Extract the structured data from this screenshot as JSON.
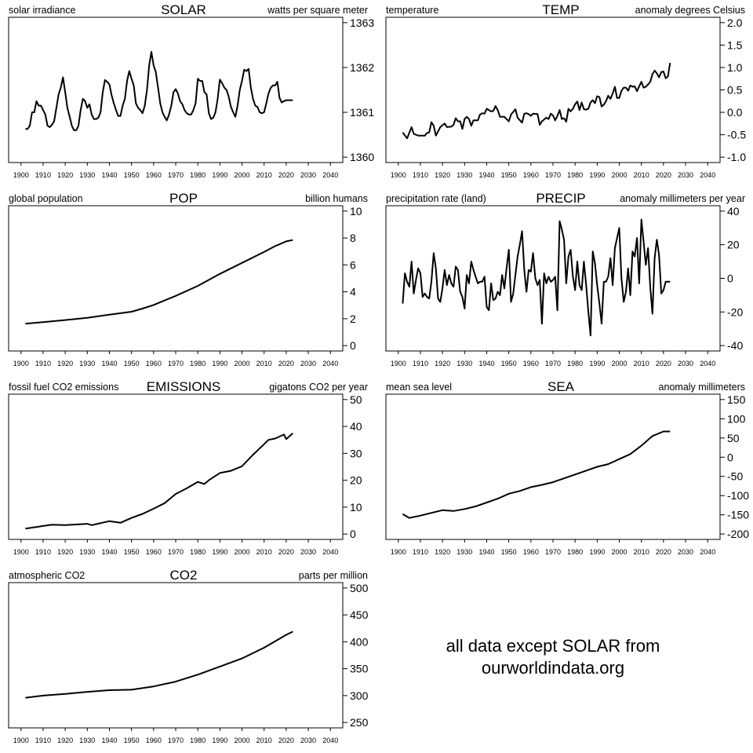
{
  "x_ticks": [
    1900,
    1910,
    1920,
    1930,
    1940,
    1950,
    1960,
    1970,
    1980,
    1990,
    2000,
    2010,
    2020,
    2030,
    2040
  ],
  "note": {
    "line1": "all data except SOLAR from",
    "line2": "ourworldindata.org"
  },
  "chart_data": [
    {
      "type": "line",
      "title": "SOLAR",
      "left_label": "solar irradiance",
      "right_label": "watts per square meter",
      "xlim": [
        1900,
        2040
      ],
      "ylim": [
        1360,
        1363
      ],
      "y_ticks": [
        "1360",
        "1361",
        "1362",
        "1363"
      ],
      "grid": false,
      "x": [
        1902,
        1903,
        1904,
        1905,
        1906,
        1907,
        1908,
        1909,
        1910,
        1911,
        1912,
        1913,
        1914,
        1915,
        1916,
        1917,
        1918,
        1919,
        1920,
        1921,
        1922,
        1923,
        1924,
        1925,
        1926,
        1927,
        1928,
        1929,
        1930,
        1931,
        1932,
        1933,
        1934,
        1935,
        1936,
        1937,
        1938,
        1939,
        1940,
        1941,
        1942,
        1943,
        1944,
        1945,
        1946,
        1947,
        1948,
        1949,
        1950,
        1951,
        1952,
        1953,
        1954,
        1955,
        1956,
        1957,
        1958,
        1959,
        1960,
        1961,
        1962,
        1963,
        1964,
        1965,
        1966,
        1967,
        1968,
        1969,
        1970,
        1971,
        1972,
        1973,
        1974,
        1975,
        1976,
        1977,
        1978,
        1979,
        1980,
        1981,
        1982,
        1983,
        1984,
        1985,
        1986,
        1987,
        1988,
        1989,
        1990,
        1991,
        1992,
        1993,
        1994,
        1995,
        1996,
        1997,
        1998,
        1999,
        2000,
        2001,
        2002,
        2003,
        2004,
        2005,
        2006,
        2007,
        2008,
        2009,
        2010,
        2011,
        2012,
        2013,
        2014,
        2015,
        2016,
        2017,
        2018,
        2019,
        2020,
        2021,
        2022,
        2023
      ],
      "y": [
        1360.63,
        1360.63,
        1360.7,
        1361.0,
        1361.0,
        1361.25,
        1361.15,
        1361.15,
        1361.05,
        1360.95,
        1360.7,
        1360.67,
        1360.72,
        1360.8,
        1361.1,
        1361.4,
        1361.55,
        1361.78,
        1361.45,
        1361.1,
        1360.9,
        1360.7,
        1360.6,
        1360.6,
        1360.7,
        1361.05,
        1361.3,
        1361.25,
        1361.1,
        1361.18,
        1360.95,
        1360.85,
        1360.85,
        1360.88,
        1361.0,
        1361.45,
        1361.72,
        1361.68,
        1361.62,
        1361.38,
        1361.2,
        1361.05,
        1360.92,
        1360.92,
        1361.15,
        1361.3,
        1361.7,
        1361.92,
        1361.75,
        1361.6,
        1361.2,
        1361.1,
        1361.05,
        1360.98,
        1361.15,
        1361.5,
        1362.05,
        1362.35,
        1362.05,
        1361.9,
        1361.55,
        1361.2,
        1361.0,
        1360.9,
        1360.82,
        1360.95,
        1361.15,
        1361.45,
        1361.52,
        1361.42,
        1361.25,
        1361.18,
        1361.05,
        1360.98,
        1360.95,
        1360.95,
        1361.05,
        1361.2,
        1361.75,
        1361.7,
        1361.7,
        1361.45,
        1361.4,
        1360.98,
        1360.85,
        1360.88,
        1361.0,
        1361.3,
        1361.73,
        1361.65,
        1361.55,
        1361.5,
        1361.35,
        1361.12,
        1361.0,
        1360.9,
        1361.15,
        1361.5,
        1361.7,
        1361.95,
        1361.92,
        1361.97,
        1361.55,
        1361.3,
        1361.15,
        1361.12,
        1361.0,
        1360.98,
        1361.0,
        1361.2,
        1361.42,
        1361.55,
        1361.6,
        1361.6,
        1361.68,
        1361.32,
        1361.22,
        1361.25,
        1361.27,
        1361.27,
        1361.27,
        1361.27
      ]
    },
    {
      "type": "line",
      "title": "TEMP",
      "left_label": "temperature",
      "right_label": "anomaly degrees Celsius",
      "xlim": [
        1900,
        2040
      ],
      "ylim": [
        -1.0,
        2.0
      ],
      "y_ticks": [
        "-1.0",
        "-0.5",
        "0.0",
        "0.5",
        "1.0",
        "1.5",
        "2.0"
      ],
      "grid": false,
      "x": [
        1902,
        1904,
        1906,
        1907,
        1909,
        1912,
        1913,
        1914,
        1915,
        1916,
        1917,
        1919,
        1921,
        1922,
        1924,
        1925,
        1926,
        1927,
        1928,
        1929,
        1930,
        1931,
        1932,
        1933,
        1934,
        1936,
        1937,
        1938,
        1939,
        1940,
        1942,
        1943,
        1944,
        1945,
        1946,
        1948,
        1950,
        1951,
        1953,
        1954,
        1956,
        1957,
        1958,
        1959,
        1960,
        1961,
        1963,
        1964,
        1965,
        1967,
        1968,
        1969,
        1970,
        1971,
        1972,
        1973,
        1974,
        1975,
        1976,
        1977,
        1978,
        1979,
        1980,
        1981,
        1982,
        1983,
        1984,
        1985,
        1986,
        1987,
        1988,
        1989,
        1990,
        1991,
        1992,
        1993,
        1994,
        1995,
        1996,
        1997,
        1998,
        1999,
        2000,
        2001,
        2002,
        2003,
        2004,
        2005,
        2006,
        2007,
        2008,
        2009,
        2010,
        2011,
        2012,
        2013,
        2014,
        2015,
        2016,
        2017,
        2018,
        2019,
        2020,
        2021,
        2022,
        2023
      ],
      "y": [
        -0.45,
        -0.58,
        -0.33,
        -0.48,
        -0.52,
        -0.52,
        -0.46,
        -0.45,
        -0.22,
        -0.3,
        -0.52,
        -0.33,
        -0.25,
        -0.33,
        -0.32,
        -0.28,
        -0.13,
        -0.2,
        -0.2,
        -0.37,
        -0.15,
        -0.1,
        -0.15,
        -0.3,
        -0.18,
        -0.18,
        -0.05,
        -0.02,
        -0.03,
        0.08,
        0.02,
        0.03,
        0.14,
        0.05,
        -0.1,
        -0.1,
        -0.2,
        -0.05,
        0.07,
        -0.12,
        -0.23,
        -0.03,
        -0.02,
        -0.04,
        -0.08,
        -0.03,
        -0.04,
        -0.28,
        -0.2,
        -0.12,
        -0.15,
        -0.03,
        -0.07,
        -0.18,
        -0.08,
        0.05,
        -0.15,
        -0.13,
        -0.21,
        0.08,
        0.02,
        0.08,
        0.18,
        0.24,
        0.05,
        0.22,
        0.07,
        0.06,
        0.08,
        0.22,
        0.27,
        0.2,
        0.36,
        0.34,
        0.13,
        0.17,
        0.25,
        0.37,
        0.3,
        0.42,
        0.57,
        0.32,
        0.32,
        0.48,
        0.55,
        0.55,
        0.48,
        0.6,
        0.57,
        0.58,
        0.47,
        0.58,
        0.68,
        0.55,
        0.57,
        0.62,
        0.68,
        0.85,
        0.93,
        0.87,
        0.78,
        0.9,
        0.91,
        0.76,
        0.8,
        1.1
      ]
    },
    {
      "type": "line",
      "title": "POP",
      "left_label": "global population",
      "right_label": "billion humans",
      "xlim": [
        1900,
        2040
      ],
      "ylim": [
        0,
        10
      ],
      "y_ticks": [
        "0",
        "2",
        "4",
        "6",
        "8",
        "10"
      ],
      "grid": false,
      "x": [
        1902,
        1910,
        1920,
        1930,
        1940,
        1950,
        1955,
        1960,
        1970,
        1980,
        1990,
        2000,
        2010,
        2015,
        2020,
        2023
      ],
      "y": [
        1.63,
        1.75,
        1.9,
        2.07,
        2.3,
        2.52,
        2.75,
        3.02,
        3.7,
        4.44,
        5.33,
        6.15,
        6.96,
        7.4,
        7.75,
        7.85
      ]
    },
    {
      "type": "line",
      "title": "PRECIP",
      "left_label": "precipitation rate (land)",
      "right_label": "anomaly millimeters per year",
      "xlim": [
        1900,
        2040
      ],
      "ylim": [
        -40,
        40
      ],
      "y_ticks": [
        "-40",
        "-20",
        "0",
        "20",
        "40"
      ],
      "grid": false,
      "x": [
        1902,
        1903,
        1904,
        1905,
        1906,
        1907,
        1908,
        1909,
        1910,
        1911,
        1912,
        1913,
        1914,
        1915,
        1916,
        1917,
        1918,
        1919,
        1920,
        1921,
        1922,
        1923,
        1924,
        1925,
        1926,
        1927,
        1928,
        1929,
        1930,
        1931,
        1932,
        1933,
        1934,
        1935,
        1936,
        1937,
        1938,
        1939,
        1940,
        1941,
        1942,
        1943,
        1944,
        1945,
        1946,
        1947,
        1948,
        1949,
        1950,
        1951,
        1952,
        1953,
        1954,
        1955,
        1956,
        1957,
        1958,
        1959,
        1960,
        1961,
        1962,
        1963,
        1964,
        1965,
        1966,
        1967,
        1968,
        1969,
        1970,
        1971,
        1972,
        1973,
        1974,
        1975,
        1976,
        1977,
        1978,
        1979,
        1980,
        1981,
        1982,
        1983,
        1984,
        1985,
        1986,
        1987,
        1988,
        1989,
        1990,
        1991,
        1992,
        1993,
        1994,
        1995,
        1996,
        1997,
        1998,
        1999,
        2000,
        2001,
        2002,
        2003,
        2004,
        2005,
        2006,
        2007,
        2008,
        2009,
        2010,
        2011,
        2012,
        2013,
        2014,
        2015,
        2016,
        2017,
        2018,
        2019,
        2020,
        2021,
        2022,
        2023
      ],
      "y": [
        -15,
        3,
        -2,
        -5,
        10,
        -9,
        -1,
        6,
        3,
        -11,
        -9,
        -11,
        -12,
        -2,
        15,
        6,
        -12,
        -14,
        -6,
        5,
        -4,
        2,
        -3,
        -5,
        7,
        5,
        -8,
        -11,
        -18,
        2,
        -3,
        10,
        5,
        1,
        -3,
        -2,
        -2,
        1,
        -17,
        -19,
        -3,
        -13,
        -12,
        -8,
        -10,
        2,
        -6,
        6,
        17,
        -14,
        -9,
        2,
        13,
        20,
        28,
        5,
        -8,
        5,
        4,
        15,
        0,
        -4,
        -1,
        -27,
        3,
        -3,
        1,
        -2,
        -1,
        1,
        -19,
        34,
        29,
        23,
        -3,
        13,
        17,
        1,
        -7,
        10,
        -4,
        -7,
        10,
        -4,
        -20,
        -34,
        16,
        9,
        -4,
        -15,
        -27,
        -2,
        -2,
        1,
        12,
        -4,
        18,
        24,
        30,
        0,
        -14,
        -8,
        6,
        -10,
        16,
        13,
        24,
        -3,
        35,
        22,
        8,
        18,
        -5,
        -21,
        12,
        23,
        14,
        -9,
        -7,
        -2,
        -2,
        -2
      ]
    },
    {
      "type": "line",
      "title": "EMISSIONS",
      "left_label": "fossil fuel CO2 emissions",
      "right_label": "gigatons CO2 per year",
      "xlim": [
        1900,
        2040
      ],
      "ylim": [
        0,
        50
      ],
      "y_ticks": [
        "0",
        "10",
        "20",
        "30",
        "40",
        "50"
      ],
      "grid": false,
      "x": [
        1902,
        1910,
        1914,
        1920,
        1930,
        1932,
        1940,
        1945,
        1950,
        1955,
        1960,
        1965,
        1970,
        1975,
        1980,
        1983,
        1985,
        1990,
        1995,
        2000,
        2005,
        2010,
        2012,
        2015,
        2019,
        2020,
        2023
      ],
      "y": [
        2.0,
        3.0,
        3.5,
        3.3,
        3.8,
        3.3,
        4.8,
        4.2,
        6.0,
        7.5,
        9.4,
        11.5,
        14.9,
        17.0,
        19.4,
        18.6,
        20.0,
        22.7,
        23.5,
        25.2,
        29.5,
        33.4,
        35.0,
        35.5,
        37.0,
        35.3,
        37.5
      ]
    },
    {
      "type": "line",
      "title": "SEA",
      "left_label": "mean sea level",
      "right_label": "anomaly millimeters",
      "xlim": [
        1900,
        2040
      ],
      "ylim": [
        -200,
        150
      ],
      "y_ticks": [
        "-200",
        "-150",
        "-100",
        "-50",
        "0",
        "50",
        "100",
        "150"
      ],
      "grid": false,
      "x": [
        1902,
        1905,
        1910,
        1915,
        1920,
        1925,
        1930,
        1935,
        1940,
        1945,
        1950,
        1955,
        1960,
        1965,
        1970,
        1975,
        1980,
        1985,
        1990,
        1995,
        2000,
        2005,
        2010,
        2015,
        2020,
        2023
      ],
      "y": [
        -148,
        -158,
        -152,
        -145,
        -138,
        -140,
        -135,
        -128,
        -118,
        -108,
        -95,
        -88,
        -78,
        -72,
        -65,
        -55,
        -45,
        -35,
        -25,
        -18,
        -5,
        8,
        30,
        55,
        67,
        67
      ]
    },
    {
      "type": "line",
      "title": "CO2",
      "left_label": "atmospheric CO2",
      "right_label": "parts per million",
      "xlim": [
        1900,
        2040
      ],
      "ylim": [
        250,
        500
      ],
      "y_ticks": [
        "250",
        "300",
        "350",
        "400",
        "450",
        "500"
      ],
      "grid": false,
      "x": [
        1902,
        1910,
        1920,
        1930,
        1940,
        1950,
        1960,
        1970,
        1980,
        1990,
        2000,
        2010,
        2020,
        2023
      ],
      "y": [
        296,
        300,
        303,
        307,
        310,
        311,
        317,
        326,
        339,
        354,
        369,
        389,
        413,
        419
      ]
    }
  ]
}
